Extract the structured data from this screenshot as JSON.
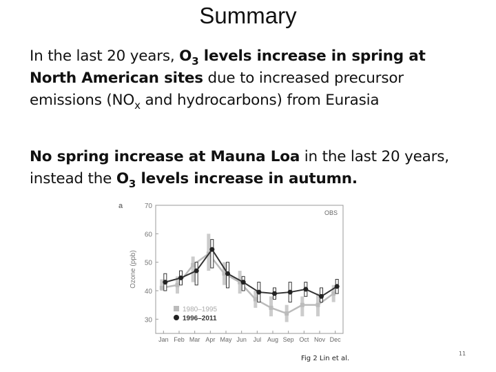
{
  "slide": {
    "title": "Summary",
    "paragraph1": {
      "t1": "In the last 20 years, ",
      "t2": "O",
      "t3": "3",
      "t4": " levels increase in spring at North American sites",
      "t5": " due to increased precursor emissions (NO",
      "t6": "x",
      "t7": " and hydrocarbons) from Eurasia"
    },
    "paragraph2": {
      "t1": "No spring increase at Mauna Loa",
      "t2": " in the last 20 years, instead the ",
      "t3": "O",
      "t4": "3",
      "t5": " levels increase in autumn."
    },
    "caption": "Fig 2 Lin et al.",
    "page_number": "11"
  },
  "chart_data": {
    "type": "line",
    "panel_label": "a",
    "corner_label": "OBS",
    "ylabel": "Ozone (ppb)",
    "ylim": [
      25,
      70
    ],
    "yticks": [
      30,
      40,
      50,
      60,
      70
    ],
    "categories": [
      "Jan",
      "Feb",
      "Mar",
      "Apr",
      "May",
      "Jun",
      "Jul",
      "Aug",
      "Sep",
      "Oct",
      "Nov",
      "Dec"
    ],
    "series": [
      {
        "name": "1980–1995",
        "color": "#bbbbbb",
        "values": [
          41,
          42,
          49,
          53,
          46,
          43,
          37,
          34,
          32,
          35,
          35,
          39
        ],
        "err_low": [
          40,
          39,
          43,
          47,
          42,
          39,
          34,
          31,
          29,
          31,
          31,
          36
        ],
        "err_high": [
          44,
          45,
          52,
          60,
          50,
          47,
          40,
          38,
          35,
          38,
          39,
          42
        ]
      },
      {
        "name": "1996–2011",
        "color": "#333333",
        "values": [
          43,
          44.5,
          47,
          54.5,
          46,
          43,
          39.5,
          39,
          39.5,
          40.5,
          38,
          41.5
        ],
        "err_low": [
          40,
          42,
          42,
          48,
          41,
          40,
          36,
          37,
          36,
          38,
          36,
          39
        ],
        "err_high": [
          46,
          47,
          50,
          58,
          50,
          45,
          43,
          41,
          43,
          43,
          41,
          44
        ]
      }
    ]
  }
}
